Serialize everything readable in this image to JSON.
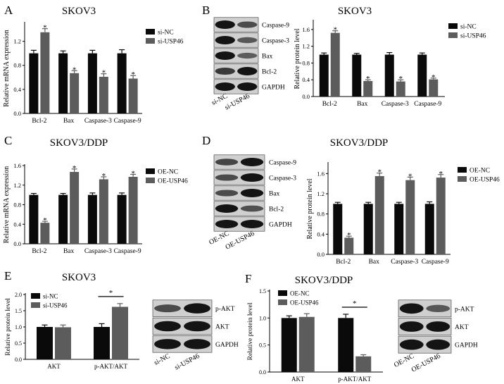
{
  "figure": {
    "panel_letters": [
      "A",
      "B",
      "C",
      "D",
      "E",
      "F"
    ],
    "colors": {
      "ctrl": "#0a0a0a",
      "treat": "#5c5c5c",
      "blot_bg": "#cfcfcf",
      "band": "#141414"
    },
    "star": "*"
  },
  "chart_data": [
    {
      "id": "A",
      "type": "bar",
      "title": "SKOV3",
      "ylabel": "Relative mRNA expression",
      "xlabel": "",
      "categories": [
        "Bcl-2",
        "Bax",
        "Caspase-3",
        "Caspase-9"
      ],
      "yticks": [
        "0.0",
        "0.4",
        "0.8",
        "1.2"
      ],
      "ylim": [
        0,
        1.5
      ],
      "grid": false,
      "legend": "right",
      "series": [
        {
          "name": "si-NC",
          "values": [
            1.0,
            1.0,
            1.0,
            1.0
          ],
          "errors": [
            0.05,
            0.04,
            0.05,
            0.06
          ]
        },
        {
          "name": "si-USP46",
          "values": [
            1.35,
            0.67,
            0.61,
            0.58
          ],
          "errors": [
            0.06,
            0.04,
            0.05,
            0.05
          ]
        }
      ],
      "stars_on_series": 1
    },
    {
      "id": "B",
      "type": "bar",
      "title": "SKOV3",
      "ylabel": "Relative protein level",
      "xlabel": "",
      "categories": [
        "Bcl-2",
        "Bax",
        "Caspase-3",
        "Caspase-9"
      ],
      "yticks": [
        "0.0",
        "0.4",
        "0.8",
        "1.2",
        "1.6"
      ],
      "ylim": [
        0,
        1.8
      ],
      "grid": false,
      "legend": "right",
      "series": [
        {
          "name": "si-NC",
          "values": [
            1.0,
            1.0,
            1.0,
            1.0
          ],
          "errors": [
            0.04,
            0.03,
            0.05,
            0.04
          ]
        },
        {
          "name": "si-USP46",
          "values": [
            1.52,
            0.37,
            0.36,
            0.41
          ],
          "errors": [
            0.05,
            0.03,
            0.04,
            0.03
          ]
        }
      ],
      "stars_on_series": 1
    },
    {
      "id": "C",
      "type": "bar",
      "title": "SKOV3/DDP",
      "ylabel": "Relative mRNA expression",
      "xlabel": "",
      "categories": [
        "Bcl-2",
        "Bax",
        "Caspase-3",
        "Caspase-9"
      ],
      "yticks": [
        "0.0",
        "0.4",
        "0.8",
        "1.2",
        "1.6"
      ],
      "ylim": [
        0,
        1.6
      ],
      "grid": false,
      "legend": "right",
      "series": [
        {
          "name": "OE-NC",
          "values": [
            1.0,
            1.0,
            1.0,
            1.0
          ],
          "errors": [
            0.03,
            0.03,
            0.04,
            0.04
          ]
        },
        {
          "name": "OE-USP46",
          "values": [
            0.43,
            1.47,
            1.32,
            1.37
          ],
          "errors": [
            0.03,
            0.06,
            0.05,
            0.05
          ]
        }
      ],
      "stars_on_series": 1
    },
    {
      "id": "D",
      "type": "bar",
      "title": "SKOV3/DDP",
      "ylabel": "Relative protein level",
      "xlabel": "",
      "categories": [
        "Bcl-2",
        "Bax",
        "Caspase-3",
        "Caspase-9"
      ],
      "yticks": [
        "0.0",
        "0.4",
        "0.8",
        "1.2",
        "1.6"
      ],
      "ylim": [
        0,
        1.8
      ],
      "grid": false,
      "legend": "right",
      "series": [
        {
          "name": "OE-NC",
          "values": [
            1.0,
            1.0,
            1.0,
            1.0
          ],
          "errors": [
            0.03,
            0.03,
            0.03,
            0.04
          ]
        },
        {
          "name": "OE-USP46",
          "values": [
            0.33,
            1.55,
            1.47,
            1.52
          ],
          "errors": [
            0.03,
            0.06,
            0.06,
            0.06
          ]
        }
      ],
      "stars_on_series": 1
    },
    {
      "id": "E",
      "type": "bar",
      "title": "SKOV3",
      "ylabel": "Relative protein level",
      "xlabel": "",
      "categories": [
        "AKT",
        "p-AKT/AKT"
      ],
      "yticks": [
        "0.0",
        "0.5",
        "1.0",
        "1.5",
        "2.0"
      ],
      "ylim": [
        0,
        2.0
      ],
      "grid": false,
      "legend": "top-left",
      "series": [
        {
          "name": "si-NC",
          "values": [
            1.0,
            1.0
          ],
          "errors": [
            0.06,
            0.1
          ]
        },
        {
          "name": "si-USP46",
          "values": [
            0.99,
            1.62
          ],
          "errors": [
            0.07,
            0.1
          ]
        }
      ],
      "bracket": {
        "category_index": 1,
        "label": "*"
      }
    },
    {
      "id": "F",
      "type": "bar",
      "title": "SKOV3/DDP",
      "ylabel": "Relative protein level",
      "xlabel": "",
      "categories": [
        "AKT",
        "p-AKT/AKT"
      ],
      "yticks": [
        "0.0",
        "0.5",
        "1.0",
        "1.5"
      ],
      "ylim": [
        0,
        1.5
      ],
      "grid": false,
      "legend": "top-left",
      "series": [
        {
          "name": "OE-NC",
          "values": [
            1.0,
            1.0
          ],
          "errors": [
            0.04,
            0.07
          ]
        },
        {
          "name": "OE-USP46",
          "values": [
            1.02,
            0.29
          ],
          "errors": [
            0.06,
            0.03
          ]
        }
      ],
      "bracket": {
        "category_index": 1,
        "label": "*"
      }
    }
  ],
  "blots": [
    {
      "id": "B",
      "labels": [
        "Caspase-9",
        "Caspase-3",
        "Bax",
        "Bcl-2",
        "GAPDH"
      ],
      "lanes": [
        "si-NC",
        "si-USP46"
      ],
      "intensity": [
        [
          1.0,
          0.55
        ],
        [
          1.0,
          0.45
        ],
        [
          1.0,
          0.4
        ],
        [
          0.7,
          1.0
        ],
        [
          1.0,
          1.0
        ]
      ]
    },
    {
      "id": "D",
      "labels": [
        "Caspase-9",
        "Caspase-3",
        "Bax",
        "Bcl-2",
        "GAPDH"
      ],
      "lanes": [
        "OE-NC",
        "OE-USP46"
      ],
      "intensity": [
        [
          0.6,
          1.0
        ],
        [
          0.55,
          1.0
        ],
        [
          0.55,
          1.0
        ],
        [
          1.0,
          0.5
        ],
        [
          1.0,
          1.0
        ]
      ]
    },
    {
      "id": "E",
      "labels": [
        "p-AKT",
        "AKT",
        "GAPDH"
      ],
      "lanes": [
        "si-NC",
        "si-USP46"
      ],
      "intensity": [
        [
          0.55,
          1.0
        ],
        [
          1.0,
          1.0
        ],
        [
          1.0,
          1.0
        ]
      ]
    },
    {
      "id": "F",
      "labels": [
        "p-AKT",
        "AKT",
        "GAPDH"
      ],
      "lanes": [
        "OE-NC",
        "OE-USP46"
      ],
      "intensity": [
        [
          1.0,
          0.45
        ],
        [
          1.0,
          1.0
        ],
        [
          1.0,
          1.0
        ]
      ]
    }
  ]
}
